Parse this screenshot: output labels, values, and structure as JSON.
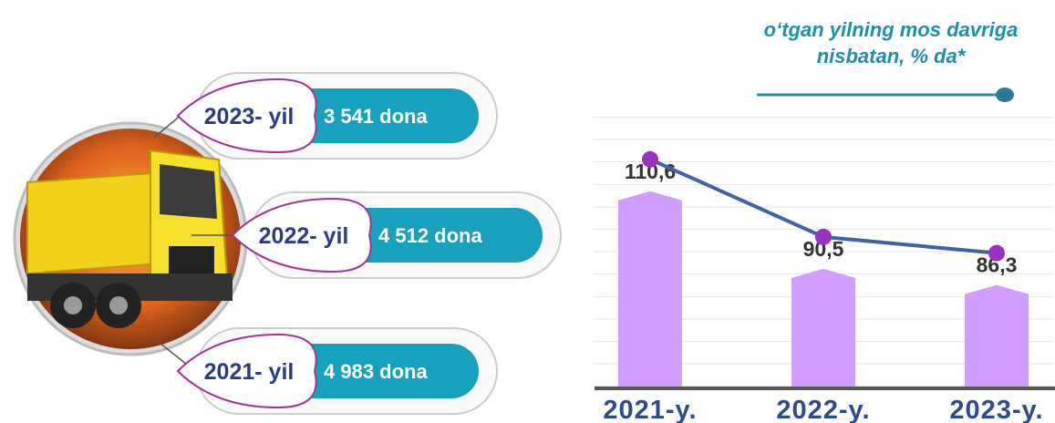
{
  "items": [
    {
      "label": "2023- yil",
      "value": "3 541 dona"
    },
    {
      "label": "2022- yil",
      "value": "4 512 dona"
    },
    {
      "label": "2021- yil",
      "value": "4 983 dona"
    }
  ],
  "chart_data": {
    "type": "bar",
    "categories": [
      "2021-y.",
      "2022-y.",
      "2023-y."
    ],
    "series": [
      {
        "name": "o‘tgan yilning mos davriga nisbatan, % da*",
        "color": "#d39cff",
        "line_color": "#3f63a6",
        "marker_color": "#9b32bf",
        "values": [
          110.6,
          90.5,
          86.3
        ],
        "value_labels": [
          "110,6",
          "90,5",
          "86,3"
        ]
      }
    ],
    "ylim": [
      60,
      120
    ]
  }
}
